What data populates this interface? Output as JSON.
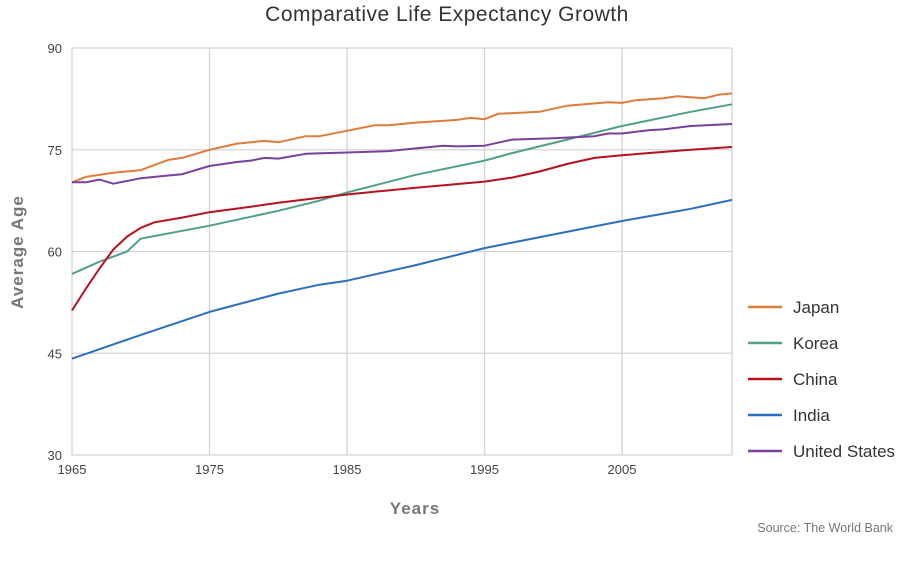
{
  "chart_data": {
    "type": "line",
    "title": "Comparative Life Expectancy Growth",
    "xlabel": "Years",
    "ylabel": "Average Age",
    "xlim": [
      1965,
      2013
    ],
    "ylim": [
      30,
      90
    ],
    "x_ticks": [
      "1965",
      "1975",
      "1985",
      "1995",
      "2005"
    ],
    "y_ticks": [
      "90",
      "75",
      "60",
      "45",
      "30"
    ],
    "grid": true,
    "legend_position": "right",
    "source": "Source:  The World Bank",
    "series": [
      {
        "name": "Japan",
        "color": "#e07b39",
        "points": [
          [
            1965,
            70.2
          ],
          [
            1966,
            71
          ],
          [
            1968,
            71.6
          ],
          [
            1970,
            72
          ],
          [
            1972,
            73.5
          ],
          [
            1973,
            73.8
          ],
          [
            1975,
            75
          ],
          [
            1977,
            75.9
          ],
          [
            1979,
            76.3
          ],
          [
            1980,
            76.1
          ],
          [
            1982,
            77
          ],
          [
            1983,
            77
          ],
          [
            1985,
            77.8
          ],
          [
            1987,
            78.6
          ],
          [
            1988,
            78.6
          ],
          [
            1990,
            79
          ],
          [
            1993,
            79.4
          ],
          [
            1994,
            79.7
          ],
          [
            1995,
            79.5
          ],
          [
            1996,
            80.3
          ],
          [
            1999,
            80.6
          ],
          [
            2001,
            81.5
          ],
          [
            2004,
            82
          ],
          [
            2005,
            81.9
          ],
          [
            2006,
            82.3
          ],
          [
            2008,
            82.6
          ],
          [
            2009,
            82.9
          ],
          [
            2011,
            82.6
          ],
          [
            2012,
            83.1
          ],
          [
            2013,
            83.3
          ]
        ]
      },
      {
        "name": "Korea",
        "color": "#4fa18a",
        "points": [
          [
            1965,
            56.7
          ],
          [
            1967,
            58.5
          ],
          [
            1969,
            60
          ],
          [
            1970,
            61.9
          ],
          [
            1975,
            63.8
          ],
          [
            1980,
            66
          ],
          [
            1983,
            67.5
          ],
          [
            1985,
            68.7
          ],
          [
            1990,
            71.3
          ],
          [
            1995,
            73.4
          ],
          [
            1997,
            74.5
          ],
          [
            2000,
            76
          ],
          [
            2005,
            78.5
          ],
          [
            2010,
            80.6
          ],
          [
            2013,
            81.7
          ]
        ]
      },
      {
        "name": "China",
        "color": "#b5121b",
        "points": [
          [
            1965,
            51.3
          ],
          [
            1966,
            54.5
          ],
          [
            1967,
            57.5
          ],
          [
            1968,
            60.3
          ],
          [
            1969,
            62.2
          ],
          [
            1970,
            63.5
          ],
          [
            1971,
            64.3
          ],
          [
            1973,
            65
          ],
          [
            1975,
            65.8
          ],
          [
            1978,
            66.6
          ],
          [
            1980,
            67.2
          ],
          [
            1985,
            68.4
          ],
          [
            1990,
            69.4
          ],
          [
            1995,
            70.3
          ],
          [
            1997,
            70.9
          ],
          [
            1999,
            71.8
          ],
          [
            2001,
            72.9
          ],
          [
            2003,
            73.8
          ],
          [
            2005,
            74.2
          ],
          [
            2010,
            75
          ],
          [
            2013,
            75.4
          ]
        ]
      },
      {
        "name": "India",
        "color": "#2a6fc2",
        "points": [
          [
            1965,
            44.2
          ],
          [
            1970,
            47.7
          ],
          [
            1975,
            51.1
          ],
          [
            1980,
            53.8
          ],
          [
            1983,
            55.1
          ],
          [
            1985,
            55.7
          ],
          [
            1990,
            58
          ],
          [
            1995,
            60.5
          ],
          [
            2000,
            62.5
          ],
          [
            2005,
            64.5
          ],
          [
            2010,
            66.3
          ],
          [
            2013,
            67.6
          ]
        ]
      },
      {
        "name": "United States",
        "color": "#7b3f9e",
        "points": [
          [
            1965,
            70.2
          ],
          [
            1966,
            70.2
          ],
          [
            1967,
            70.6
          ],
          [
            1968,
            70
          ],
          [
            1970,
            70.8
          ],
          [
            1972,
            71.2
          ],
          [
            1973,
            71.4
          ],
          [
            1975,
            72.6
          ],
          [
            1977,
            73.2
          ],
          [
            1978,
            73.4
          ],
          [
            1979,
            73.8
          ],
          [
            1980,
            73.7
          ],
          [
            1982,
            74.4
          ],
          [
            1985,
            74.6
          ],
          [
            1988,
            74.8
          ],
          [
            1990,
            75.2
          ],
          [
            1992,
            75.6
          ],
          [
            1993,
            75.5
          ],
          [
            1995,
            75.6
          ],
          [
            1997,
            76.5
          ],
          [
            2000,
            76.7
          ],
          [
            2003,
            77
          ],
          [
            2004,
            77.4
          ],
          [
            2005,
            77.4
          ],
          [
            2007,
            77.9
          ],
          [
            2008,
            78
          ],
          [
            2010,
            78.5
          ],
          [
            2013,
            78.8
          ]
        ]
      }
    ]
  }
}
